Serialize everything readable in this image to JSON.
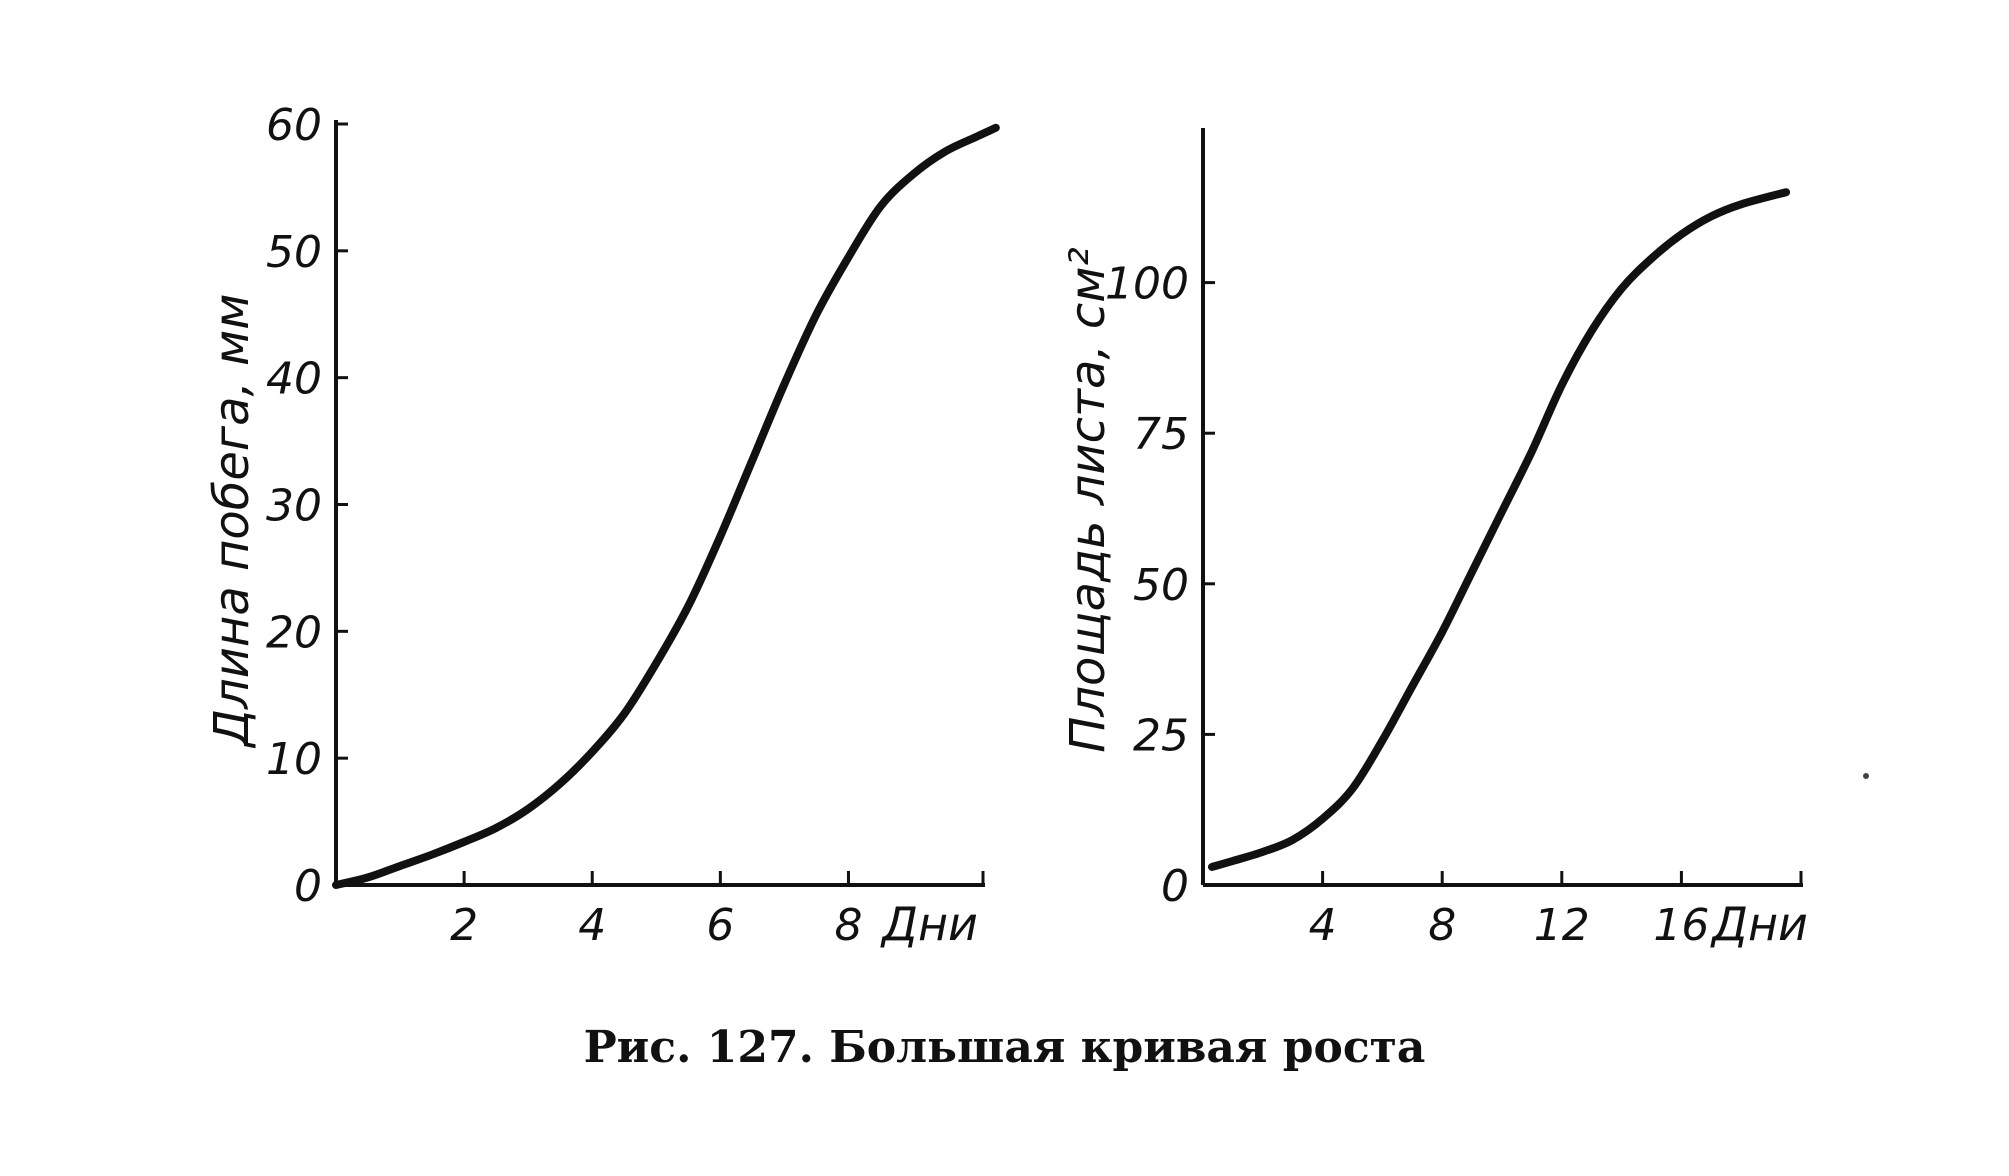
{
  "caption": "Рис. 127. Большая кривая роста",
  "ink_color": "#111111",
  "chart_data": [
    {
      "type": "line",
      "ylabel": "Длина побега, мм",
      "x_unit_label": "Дни",
      "xlim": [
        0,
        10.1
      ],
      "ylim": [
        0,
        60
      ],
      "x_ticks": [
        2,
        4,
        6,
        8
      ],
      "y_ticks": [
        0,
        10,
        20,
        30,
        40,
        50,
        60
      ],
      "grid": false,
      "series": [
        {
          "x": [
            0,
            0.5,
            1,
            1.5,
            2,
            2.5,
            3,
            3.5,
            4,
            4.5,
            5,
            5.5,
            6,
            6.5,
            7,
            7.5,
            8,
            8.5,
            9,
            9.5,
            10,
            10.3
          ],
          "y": [
            0,
            0.6,
            1.5,
            2.4,
            3.4,
            4.5,
            6,
            8,
            10.5,
            13.5,
            17.5,
            22,
            27.5,
            33.5,
            39.5,
            45,
            49.5,
            53.5,
            56,
            57.8,
            59,
            59.7
          ]
        }
      ]
    },
    {
      "type": "line",
      "ylabel": "Площадь листа, см²",
      "x_unit_label": "Дни",
      "xlim": [
        0,
        20
      ],
      "ylim": [
        0,
        125
      ],
      "x_ticks": [
        4,
        8,
        12,
        16
      ],
      "y_ticks": [
        0,
        25,
        50,
        75,
        100
      ],
      "grid": false,
      "series": [
        {
          "x": [
            0.3,
            1,
            2,
            3,
            4,
            5,
            6,
            7,
            8,
            9,
            10,
            11,
            12,
            13,
            14,
            15,
            16,
            17,
            18,
            19.5
          ],
          "y": [
            3,
            4,
            5.5,
            7.5,
            11,
            16,
            24,
            33,
            42,
            52,
            62,
            72,
            83,
            92,
            99,
            104,
            108,
            111,
            113,
            115
          ]
        }
      ]
    }
  ]
}
